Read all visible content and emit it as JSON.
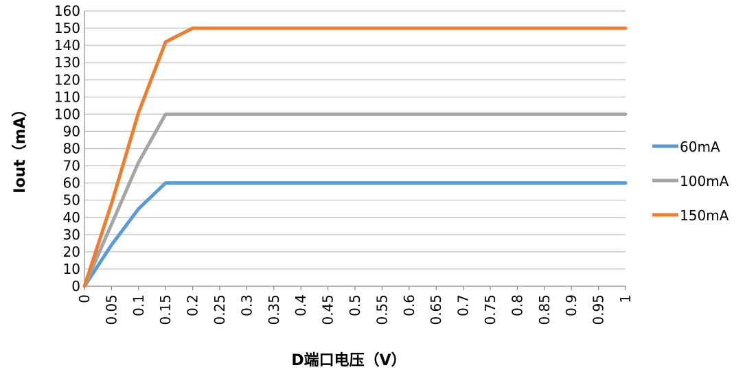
{
  "chart_data": {
    "type": "line",
    "title": "",
    "xlabel": "D端口电压（V）",
    "ylabel": "Iout（mA）",
    "xlim": [
      0,
      1
    ],
    "ylim": [
      0,
      160
    ],
    "x_ticks": [
      "0",
      "0.05",
      "0.1",
      "0.15",
      "0.2",
      "0.25",
      "0.3",
      "0.35",
      "0.4",
      "0.45",
      "0.5",
      "0.55",
      "0.6",
      "0.65",
      "0.7",
      "0.75",
      "0.8",
      "0.85",
      "0.9",
      "0.95",
      "1"
    ],
    "y_ticks": [
      "0",
      "10",
      "20",
      "30",
      "40",
      "50",
      "60",
      "70",
      "80",
      "90",
      "100",
      "110",
      "120",
      "130",
      "140",
      "150",
      "160"
    ],
    "grid": "horizontal",
    "legend_position": "right",
    "series": [
      {
        "name": "60mA",
        "color": "#5B9BD5",
        "x": [
          0,
          0.05,
          0.1,
          0.15,
          0.2,
          0.25,
          0.3,
          0.35,
          0.4,
          0.45,
          0.5,
          0.55,
          0.6,
          0.65,
          0.7,
          0.75,
          0.8,
          0.85,
          0.9,
          0.95,
          1
        ],
        "y": [
          0,
          24,
          45,
          60,
          60,
          60,
          60,
          60,
          60,
          60,
          60,
          60,
          60,
          60,
          60,
          60,
          60,
          60,
          60,
          60,
          60
        ]
      },
      {
        "name": "100mA",
        "color": "#A5A5A5",
        "x": [
          0,
          0.05,
          0.1,
          0.15,
          0.2,
          0.25,
          0.3,
          0.35,
          0.4,
          0.45,
          0.5,
          0.55,
          0.6,
          0.65,
          0.7,
          0.75,
          0.8,
          0.85,
          0.9,
          0.95,
          1
        ],
        "y": [
          0,
          36,
          72,
          100,
          100,
          100,
          100,
          100,
          100,
          100,
          100,
          100,
          100,
          100,
          100,
          100,
          100,
          100,
          100,
          100,
          100
        ]
      },
      {
        "name": "150mA",
        "color": "#ED7D31",
        "x": [
          0,
          0.05,
          0.1,
          0.15,
          0.2,
          0.25,
          0.3,
          0.35,
          0.4,
          0.45,
          0.5,
          0.55,
          0.6,
          0.65,
          0.7,
          0.75,
          0.8,
          0.85,
          0.9,
          0.95,
          1
        ],
        "y": [
          0,
          48,
          101,
          142,
          150,
          150,
          150,
          150,
          150,
          150,
          150,
          150,
          150,
          150,
          150,
          150,
          150,
          150,
          150,
          150,
          150
        ]
      }
    ]
  }
}
